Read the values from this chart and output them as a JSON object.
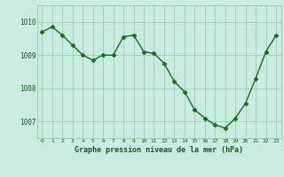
{
  "x": [
    0,
    1,
    2,
    3,
    4,
    5,
    6,
    7,
    8,
    9,
    10,
    11,
    12,
    13,
    14,
    15,
    16,
    17,
    18,
    19,
    20,
    21,
    22,
    23
  ],
  "y": [
    1009.7,
    1009.85,
    1009.6,
    1009.3,
    1009.0,
    1008.85,
    1009.0,
    1009.0,
    1009.55,
    1009.6,
    1009.1,
    1009.05,
    1008.75,
    1008.2,
    1007.9,
    1007.35,
    1007.1,
    1006.9,
    1006.8,
    1007.1,
    1007.55,
    1008.3,
    1009.1,
    1009.6
  ],
  "line_color": "#1a6b1a",
  "marker_color": "#1a6b1a",
  "bg_color": "#c8ece0",
  "grid_color": "#a0cdb8",
  "label_color": "#1a5a1a",
  "xlabel": "Graphe pression niveau de la mer (hPa)",
  "ylim": [
    1006.5,
    1010.5
  ],
  "yticks": [
    1007,
    1008,
    1009,
    1010
  ],
  "xlim": [
    -0.5,
    23.5
  ]
}
